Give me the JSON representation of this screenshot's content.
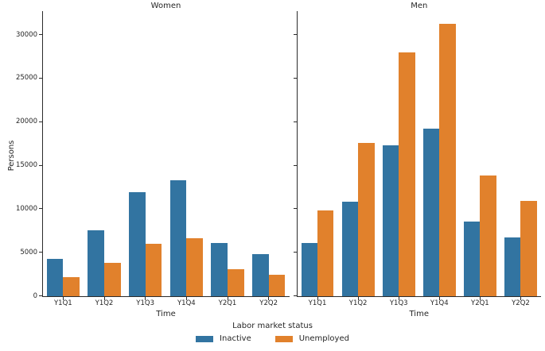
{
  "chart_data": {
    "type": "bar",
    "categories": [
      "Y1Q1",
      "Y1Q2",
      "Y1Q3",
      "Y1Q4",
      "Y2Q1",
      "Y2Q2"
    ],
    "facets": [
      {
        "title": "Women",
        "series": [
          {
            "name": "Inactive",
            "values": [
              4200,
              7500,
              11900,
              13300,
              6100,
              4800
            ]
          },
          {
            "name": "Unemployed",
            "values": [
              2100,
              3750,
              5950,
              6650,
              3050,
              2400
            ]
          }
        ]
      },
      {
        "title": "Men",
        "series": [
          {
            "name": "Inactive",
            "values": [
              6100,
              10800,
              17300,
              19200,
              8500,
              6700
            ]
          },
          {
            "name": "Unemployed",
            "values": [
              9800,
              17600,
              28000,
              31200,
              13800,
              10900
            ]
          }
        ]
      }
    ],
    "series_colors": {
      "Inactive": "#3274a1",
      "Unemployed": "#e1812c"
    },
    "xlabel": "Time",
    "ylabel": "Persons",
    "yticks": [
      0,
      5000,
      10000,
      15000,
      20000,
      25000,
      30000
    ],
    "ylim": [
      0,
      32700
    ],
    "grid": false,
    "legend": {
      "title": "Labor market status",
      "position": "bottom-center",
      "entries": [
        {
          "label": "Inactive",
          "color": "#3274a1"
        },
        {
          "label": "Unemployed",
          "color": "#e1812c"
        }
      ]
    }
  }
}
